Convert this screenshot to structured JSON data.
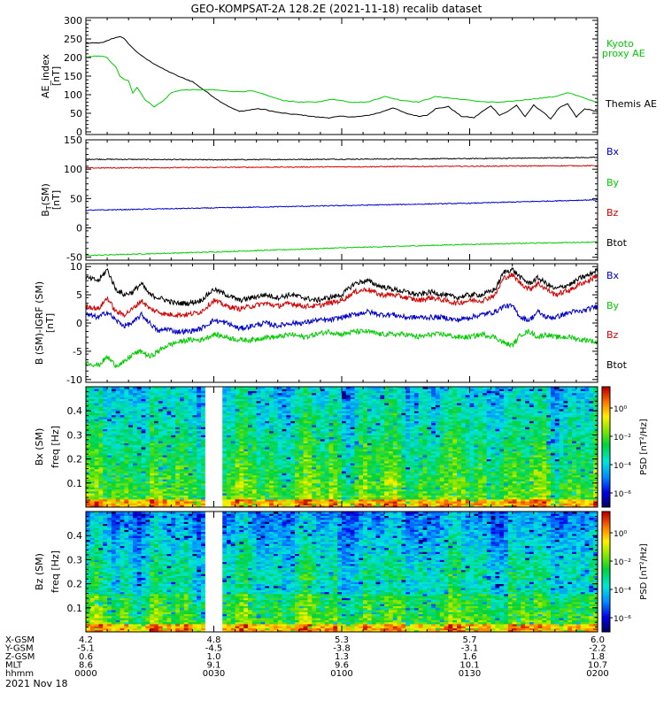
{
  "title": "GEO-KOMPSAT-2A 128.2E (2021-11-18) recalib dataset",
  "colors": {
    "black": "#000000",
    "red": "#d40000",
    "blue": "#0000cc",
    "green": "#00cc00",
    "gap": "#ffffff"
  },
  "ae_panel": {
    "ylabel_line1": "AE_index",
    "ylabel_line2": "[nT]",
    "legend_kyoto_line1": "Kyoto",
    "legend_kyoto_line2": "proxy AE",
    "legend_themis": "Themis AE"
  },
  "b_panel": {
    "ylabel_line1": "B",
    "ylabel_sub": "T",
    "ylabel_suffix": "(SM)",
    "ylabel_line2": "[nT]",
    "legend": [
      "Bx",
      "By",
      "Bz",
      "Btot"
    ]
  },
  "db_panel": {
    "ylabel_line1": "B (SM)-IGRF (SM)",
    "ylabel_line2": "[nT]",
    "legend": [
      "Bx",
      "By",
      "Bz",
      "Btot"
    ]
  },
  "spec_bx": {
    "ylabel_line1": "Bx (SM)",
    "ylabel_line2": "freq [Hz]",
    "colorbar_label": "PSD [nT²/Hz]"
  },
  "spec_bz": {
    "ylabel_line1": "Bz (SM)",
    "ylabel_line2": "freq [Hz]",
    "colorbar_label": "PSD [nT²/Hz]"
  },
  "colorbar_ticks": [
    "10⁰",
    "10⁻²",
    "10⁻⁴",
    "10⁻⁶"
  ],
  "ephemeris": {
    "rows": [
      {
        "label": "X-GSM",
        "values": [
          "4.2",
          "4.8",
          "5.3",
          "5.7",
          "6.0"
        ]
      },
      {
        "label": "Y-GSM",
        "values": [
          "-5.1",
          "-4.5",
          "-3.8",
          "-3.1",
          "-2.2"
        ]
      },
      {
        "label": "Z-GSM",
        "values": [
          "0.6",
          "1.0",
          "1.3",
          "1.6",
          "1.8"
        ]
      },
      {
        "label": "MLT",
        "values": [
          "8.6",
          "9.1",
          "9.6",
          "10.1",
          "10.7"
        ]
      },
      {
        "label": "hhmm",
        "values": [
          "0000",
          "0030",
          "0100",
          "0130",
          "0200"
        ]
      }
    ],
    "date": "2021 Nov 18"
  },
  "chart_data": [
    {
      "type": "line",
      "name": "AE index",
      "ylim": [
        0,
        300
      ],
      "yticks": [
        0,
        50,
        100,
        150,
        200,
        250,
        300
      ],
      "xlim_minutes": [
        0,
        120
      ],
      "series": [
        {
          "name": "Themis AE",
          "color": "#000000",
          "x": [
            0,
            4,
            6,
            8,
            9,
            11,
            13,
            15,
            18,
            22,
            25,
            28,
            31,
            34,
            36,
            38,
            40,
            42,
            45,
            48,
            51,
            54,
            57,
            60,
            63,
            66,
            69,
            72,
            75,
            78,
            80,
            82,
            85,
            88,
            91,
            93,
            95,
            97,
            99,
            101,
            103,
            105,
            107,
            109,
            111,
            113,
            115,
            117,
            120
          ],
          "y": [
            238,
            240,
            250,
            257,
            250,
            225,
            205,
            190,
            170,
            148,
            135,
            110,
            85,
            65,
            55,
            58,
            62,
            60,
            52,
            48,
            45,
            40,
            38,
            42,
            40,
            44,
            52,
            65,
            50,
            42,
            45,
            62,
            68,
            42,
            38,
            55,
            70,
            45,
            55,
            72,
            40,
            72,
            55,
            35,
            65,
            75,
            40,
            62,
            55
          ]
        },
        {
          "name": "Kyoto proxy AE",
          "color": "#00cc00",
          "x": [
            0,
            3,
            5,
            6,
            7,
            8,
            9,
            10,
            11,
            12,
            14,
            16,
            18,
            20,
            22,
            24,
            27,
            30,
            33,
            36,
            39,
            42,
            46,
            50,
            54,
            58,
            62,
            66,
            70,
            74,
            78,
            82,
            86,
            90,
            94,
            98,
            102,
            106,
            110,
            113,
            116,
            120
          ],
          "y": [
            200,
            205,
            200,
            185,
            175,
            150,
            140,
            138,
            105,
            120,
            85,
            68,
            82,
            105,
            112,
            113,
            113,
            113,
            110,
            108,
            110,
            100,
            85,
            80,
            80,
            88,
            80,
            80,
            95,
            85,
            80,
            95,
            90,
            85,
            80,
            80,
            85,
            90,
            95,
            105,
            95,
            78
          ]
        }
      ]
    },
    {
      "type": "line",
      "name": "B(SM)",
      "ylim": [
        -55,
        150
      ],
      "yticks": [
        -50,
        0,
        50,
        100,
        150
      ],
      "xlim_minutes": [
        0,
        120
      ],
      "series": [
        {
          "name": "Bx",
          "color": "#000000",
          "x": [
            0,
            30,
            60,
            90,
            120
          ],
          "y": [
            117,
            116,
            117,
            118,
            120
          ]
        },
        {
          "name": "By",
          "color": "#00cc00",
          "x": [
            0,
            30,
            60,
            90,
            120
          ],
          "y": [
            -47,
            -41,
            -34,
            -28,
            -24
          ]
        },
        {
          "name": "Bz",
          "color": "#d40000",
          "x": [
            0,
            30,
            60,
            90,
            120
          ],
          "y": [
            102,
            103,
            104,
            105,
            106
          ]
        },
        {
          "name": "Btot",
          "color": "#0000cc",
          "x": [
            0,
            30,
            60,
            90,
            120
          ],
          "y": [
            30,
            34,
            38,
            42,
            48
          ]
        }
      ]
    },
    {
      "type": "line",
      "name": "B(SM)-IGRF(SM)",
      "ylim": [
        -10.5,
        10.5
      ],
      "yticks": [
        -10,
        -5,
        0,
        5,
        10
      ],
      "xlim_minutes": [
        0,
        120
      ],
      "series": [
        {
          "name": "Bx",
          "color": "#000000",
          "x": [
            0,
            3,
            5,
            7,
            9,
            11,
            13,
            15,
            17,
            19,
            21,
            24,
            27,
            30,
            33,
            36,
            39,
            42,
            45,
            48,
            51,
            54,
            57,
            60,
            63,
            66,
            69,
            72,
            75,
            78,
            81,
            84,
            87,
            90,
            93,
            96,
            98,
            100,
            102,
            104,
            106,
            108,
            110,
            112,
            114,
            116,
            118,
            120
          ],
          "y": [
            8,
            7.5,
            9.5,
            6,
            5,
            5.5,
            7,
            5,
            4.5,
            4,
            3.5,
            3.5,
            4,
            6,
            5,
            4,
            4.5,
            5,
            4.5,
            5,
            4.5,
            4,
            4.5,
            5,
            7,
            7.5,
            6.5,
            6,
            5.5,
            5,
            5.5,
            5,
            4.5,
            5,
            5,
            6,
            9,
            9.5,
            8,
            7,
            8,
            7,
            6,
            6.5,
            7,
            8,
            8.5,
            9.5
          ]
        },
        {
          "name": "Bz",
          "color": "#d40000",
          "x": [
            0,
            3,
            5,
            7,
            9,
            11,
            13,
            15,
            17,
            19,
            21,
            24,
            27,
            30,
            33,
            36,
            39,
            42,
            45,
            48,
            51,
            54,
            57,
            60,
            63,
            66,
            69,
            72,
            75,
            78,
            81,
            84,
            87,
            90,
            93,
            96,
            98,
            100,
            102,
            104,
            106,
            108,
            110,
            112,
            114,
            116,
            118,
            120
          ],
          "y": [
            3,
            2.5,
            4.5,
            2,
            1.5,
            2.5,
            4,
            2.5,
            2,
            1.5,
            1.5,
            1.5,
            2,
            4,
            3,
            2.5,
            3,
            3.5,
            3,
            3.5,
            3,
            3,
            3.5,
            4,
            5.5,
            6,
            5,
            5,
            4.5,
            4,
            4.5,
            4,
            3.5,
            4,
            4,
            5,
            8,
            8.5,
            7,
            6,
            7,
            6,
            5,
            5.5,
            6,
            7,
            7.5,
            8.5
          ]
        },
        {
          "name": "By",
          "color": "#0000cc",
          "x": [
            0,
            3,
            5,
            7,
            9,
            11,
            13,
            15,
            17,
            19,
            21,
            24,
            27,
            30,
            33,
            36,
            39,
            42,
            45,
            48,
            51,
            54,
            57,
            60,
            63,
            66,
            69,
            72,
            75,
            78,
            81,
            84,
            87,
            90,
            93,
            96,
            98,
            100,
            102,
            104,
            106,
            108,
            110,
            112,
            114,
            116,
            118,
            120
          ],
          "y": [
            1.5,
            1,
            2,
            0.5,
            -0.5,
            0,
            1.5,
            0,
            -1.5,
            -1,
            -1.5,
            -1.5,
            -1,
            0.5,
            0,
            -1,
            -0.5,
            0,
            -0.5,
            0,
            0,
            0.5,
            0.5,
            1,
            1.5,
            2,
            1.5,
            1.5,
            1,
            1,
            1,
            1,
            0.5,
            1,
            1.5,
            2,
            3,
            3,
            1,
            0.5,
            2,
            1,
            1,
            1.5,
            2,
            2,
            2.5,
            3
          ]
        },
        {
          "name": "Btot",
          "color": "#00cc00",
          "x": [
            0,
            3,
            5,
            7,
            9,
            11,
            13,
            15,
            17,
            19,
            21,
            24,
            27,
            30,
            33,
            36,
            39,
            42,
            45,
            48,
            51,
            54,
            57,
            60,
            63,
            66,
            69,
            72,
            75,
            78,
            81,
            84,
            87,
            90,
            93,
            96,
            98,
            100,
            102,
            104,
            106,
            108,
            110,
            112,
            114,
            116,
            118,
            120
          ],
          "y": [
            -7,
            -7.5,
            -6,
            -7.5,
            -7,
            -5.5,
            -5,
            -6,
            -5,
            -4,
            -3.5,
            -3,
            -3,
            -2,
            -2.5,
            -3,
            -3,
            -2.5,
            -2.5,
            -2,
            -2.5,
            -2,
            -1.5,
            -2,
            -1.5,
            -1.5,
            -2,
            -2,
            -2,
            -2.5,
            -2,
            -2,
            -2.5,
            -2.5,
            -2,
            -2.5,
            -3.5,
            -4,
            -2,
            -1.5,
            -2.5,
            -2,
            -2.5,
            -2.5,
            -2.5,
            -3,
            -3,
            -3.5
          ]
        }
      ]
    },
    {
      "type": "heatmap",
      "name": "Bx (SM) spectrogram",
      "ylim": [
        0,
        0.5
      ],
      "yticks": [
        0.1,
        0.2,
        0.3,
        0.4
      ],
      "xlim_minutes": [
        0,
        120
      ],
      "data_gap_minutes": [
        28,
        32
      ],
      "color_scale_log10": [
        -6,
        2
      ]
    },
    {
      "type": "heatmap",
      "name": "Bz (SM) spectrogram",
      "ylim": [
        0,
        0.5
      ],
      "yticks": [
        0.1,
        0.2,
        0.3,
        0.4
      ],
      "xlim_minutes": [
        0,
        120
      ],
      "data_gap_minutes": [
        28,
        32
      ],
      "color_scale_log10": [
        -6,
        2
      ]
    }
  ]
}
